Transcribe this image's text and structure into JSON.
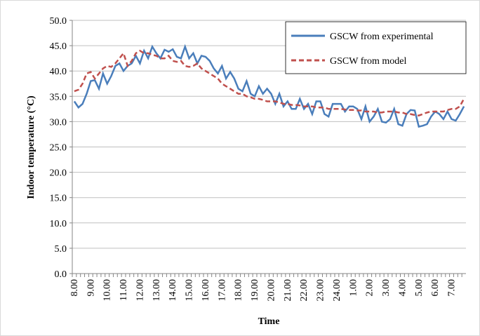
{
  "chart_data": {
    "type": "line",
    "y_label": "Indoor temperature (°C)",
    "x_label": "Time",
    "categories": [
      "8.00",
      null,
      null,
      null,
      "9.00",
      null,
      null,
      null,
      "10.00",
      null,
      null,
      null,
      "11.00",
      null,
      null,
      null,
      "12.00",
      null,
      null,
      null,
      "13.00",
      null,
      null,
      null,
      "14.00",
      null,
      null,
      null,
      "15.00",
      null,
      null,
      null,
      "16.00",
      null,
      null,
      null,
      "17.00",
      null,
      null,
      null,
      "18.00",
      null,
      null,
      null,
      "19.00",
      null,
      null,
      null,
      "20.00",
      null,
      null,
      null,
      "21.00",
      null,
      null,
      null,
      "22.00",
      null,
      null,
      null,
      "23.00",
      null,
      null,
      null,
      "24.00",
      null,
      null,
      null,
      "1.00",
      null,
      null,
      null,
      "2.00",
      null,
      null,
      null,
      "3.00",
      null,
      null,
      null,
      "4.00",
      null,
      null,
      null,
      "5.00",
      null,
      null,
      null,
      "6.00",
      null,
      null,
      null,
      "7.00",
      null,
      null,
      null
    ],
    "series": [
      {
        "name": "GSCW from experimental",
        "color": "#4a7ebb",
        "line_style": "solid",
        "values": [
          34,
          32.8,
          33.5,
          35.5,
          38,
          38.2,
          36.5,
          39.5,
          37.5,
          39,
          41,
          41.5,
          40,
          41,
          41.5,
          43,
          41.5,
          44,
          42.5,
          44.8,
          43.5,
          42.5,
          44.2,
          43.8,
          44.3,
          42.8,
          42.5,
          44.8,
          42.5,
          43.5,
          41.5,
          43,
          42.8,
          42,
          40.5,
          39.5,
          41,
          38.5,
          39.8,
          38.5,
          36.5,
          36,
          38,
          35.5,
          35,
          37,
          35.5,
          36.5,
          35.5,
          33.5,
          35.5,
          33,
          34,
          32.5,
          32.5,
          34.5,
          32.5,
          33.5,
          31.5,
          34,
          34,
          31.5,
          31,
          33.5,
          33.5,
          33.5,
          32,
          33,
          33,
          32.5,
          30.5,
          33,
          30,
          31,
          32.5,
          30,
          29.8,
          30.5,
          32.5,
          29.5,
          29.2,
          31.5,
          32.3,
          32.2,
          29,
          29.2,
          29.5,
          31,
          32,
          31.5,
          30.5,
          32,
          30.5,
          30.2,
          31.5,
          33
        ]
      },
      {
        "name": "GSCW from model",
        "color": "#c0504d",
        "line_style": "dashed",
        "values": [
          36,
          36.3,
          37.5,
          39.5,
          39.8,
          38.5,
          39.5,
          40.5,
          41,
          40.8,
          41.5,
          42.5,
          43.5,
          41,
          42,
          43.5,
          44,
          43.5,
          43.5,
          43.2,
          43,
          42.5,
          42.5,
          43,
          42,
          41.8,
          42,
          41,
          40.8,
          41,
          41.5,
          40.5,
          40,
          39.5,
          39,
          38.5,
          37.5,
          37,
          36.5,
          36,
          35.5,
          35.5,
          35,
          34.8,
          34.5,
          34.5,
          34.3,
          34,
          34,
          34,
          33.8,
          33.5,
          33.5,
          33.3,
          33.3,
          33.2,
          33,
          33,
          33,
          32.8,
          32.8,
          32.8,
          32.5,
          32.5,
          32.5,
          32.5,
          32.4,
          32.3,
          32.3,
          32.2,
          32.2,
          32,
          32,
          32,
          31.8,
          31.8,
          32,
          32,
          32,
          31.8,
          31.8,
          31.5,
          31.5,
          31.3,
          31.2,
          31.5,
          31.8,
          32,
          32,
          32,
          32,
          32.3,
          32.5,
          32.5,
          33,
          34.5
        ]
      }
    ],
    "ylim": [
      0,
      50
    ],
    "yticks": [
      {
        "value": 0,
        "label": "0.0"
      },
      {
        "value": 5,
        "label": "5.0"
      },
      {
        "value": 10,
        "label": "10.0"
      },
      {
        "value": 15,
        "label": "15.0"
      },
      {
        "value": 20,
        "label": "20.0"
      },
      {
        "value": 25,
        "label": "25.0"
      },
      {
        "value": 30,
        "label": "30.0"
      },
      {
        "value": 35,
        "label": "35.0"
      },
      {
        "value": 40,
        "label": "40.0"
      },
      {
        "value": 45,
        "label": "45.0"
      },
      {
        "value": 50,
        "label": "50.0"
      }
    ],
    "grid": true,
    "legend": "top-right"
  }
}
